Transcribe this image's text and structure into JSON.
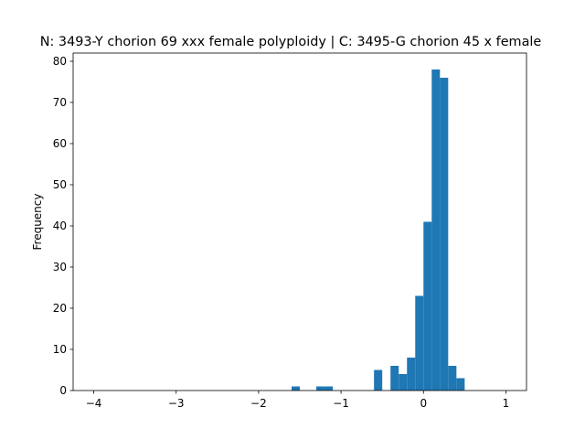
{
  "chart_data": {
    "type": "bar",
    "title": "N: 3493-Y chorion 69 xxx female polyploidy | C: 3495-G chorion 45 x female",
    "xlabel": "",
    "ylabel": "Frequency",
    "xlim": [
      -4.25,
      1.25
    ],
    "ylim": [
      0,
      82
    ],
    "x_ticks": [
      -4,
      -3,
      -2,
      -1,
      0,
      1
    ],
    "x_tick_labels": [
      "−4",
      "−3",
      "−2",
      "−1",
      "0",
      "1"
    ],
    "y_ticks": [
      0,
      10,
      20,
      30,
      40,
      50,
      60,
      70,
      80
    ],
    "y_tick_labels": [
      "0",
      "10",
      "20",
      "30",
      "40",
      "50",
      "60",
      "70",
      "80"
    ],
    "grid": false,
    "bar_color": "#1f77b4",
    "bins": [
      {
        "x0": -1.6,
        "x1": -1.5,
        "count": 1
      },
      {
        "x0": -1.3,
        "x1": -1.2,
        "count": 1
      },
      {
        "x0": -1.2,
        "x1": -1.1,
        "count": 1
      },
      {
        "x0": -0.6,
        "x1": -0.5,
        "count": 5
      },
      {
        "x0": -0.4,
        "x1": -0.3,
        "count": 6
      },
      {
        "x0": -0.3,
        "x1": -0.2,
        "count": 4
      },
      {
        "x0": -0.2,
        "x1": -0.1,
        "count": 8
      },
      {
        "x0": -0.1,
        "x1": 0.0,
        "count": 23
      },
      {
        "x0": 0.0,
        "x1": 0.1,
        "count": 41
      },
      {
        "x0": 0.1,
        "x1": 0.2,
        "count": 78
      },
      {
        "x0": 0.2,
        "x1": 0.3,
        "count": 76
      },
      {
        "x0": 0.3,
        "x1": 0.4,
        "count": 6
      },
      {
        "x0": 0.4,
        "x1": 0.5,
        "count": 3
      }
    ]
  }
}
